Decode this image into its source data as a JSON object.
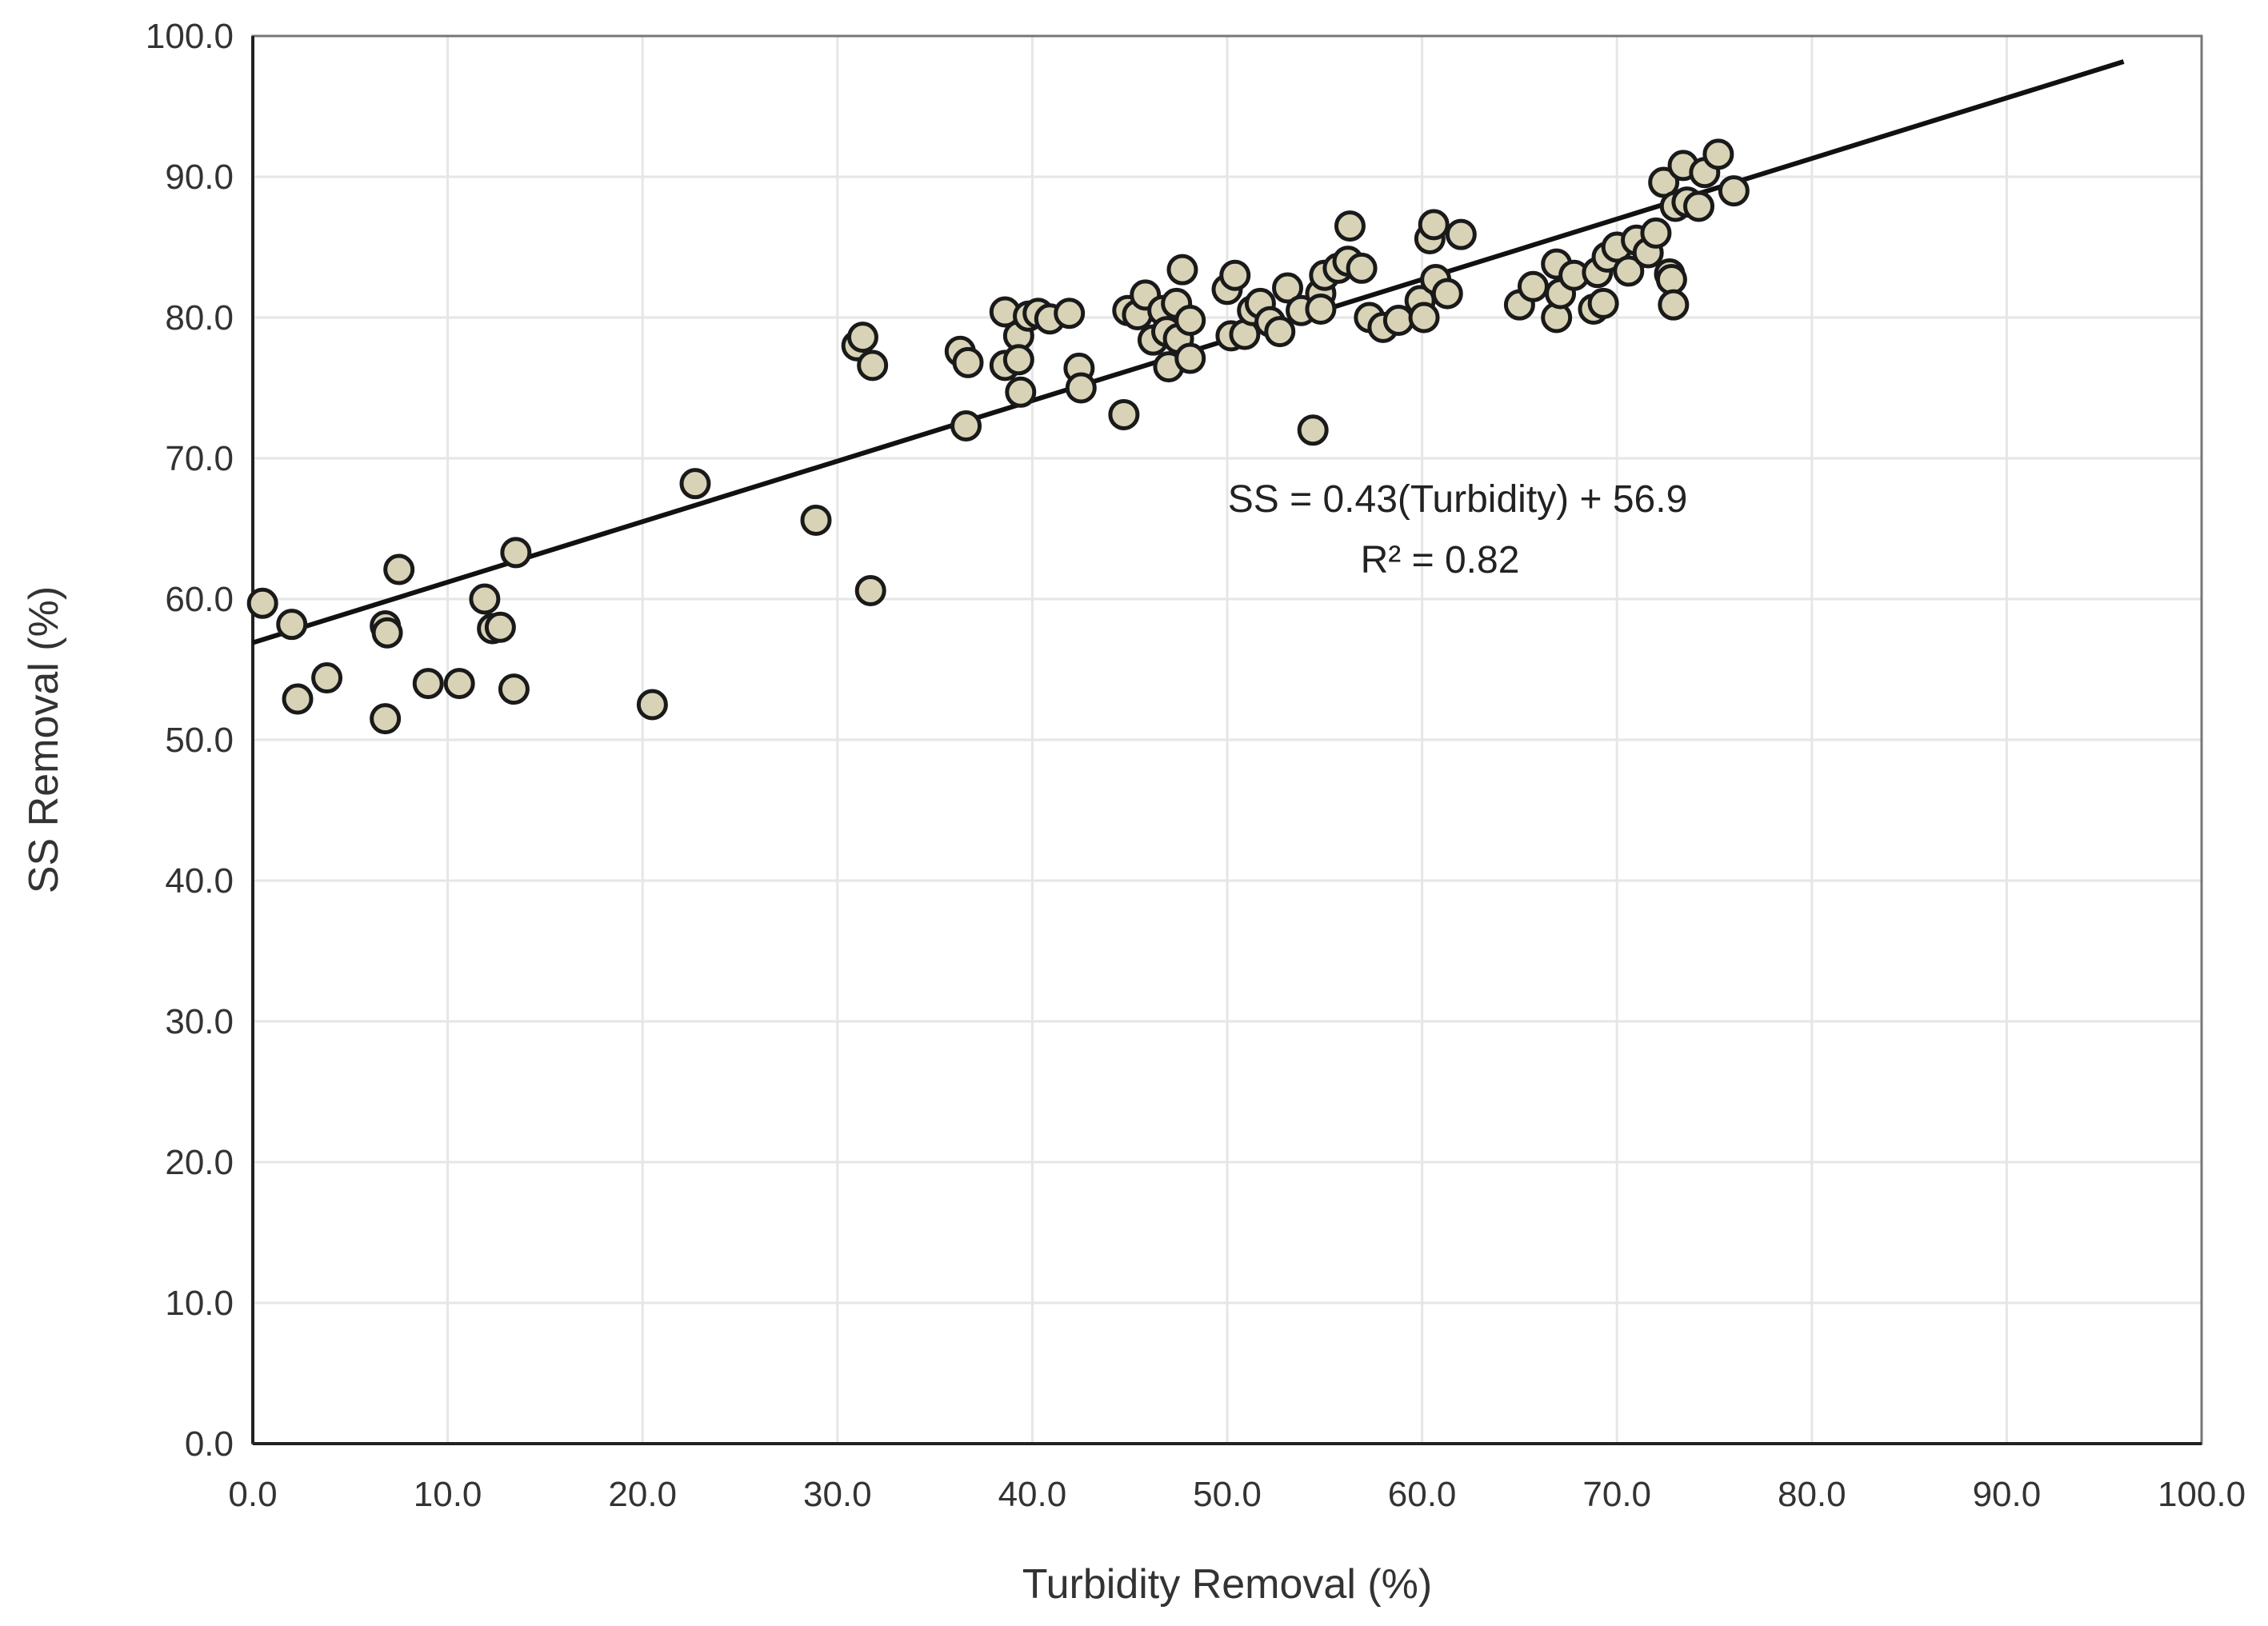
{
  "chart_data": {
    "type": "scatter",
    "title": "",
    "xlabel": "Turbidity Removal (%)",
    "ylabel": "SS Removal (%)",
    "xlim": [
      0,
      100
    ],
    "ylim": [
      0,
      100
    ],
    "xticks": [
      "0.0",
      "10.0",
      "20.0",
      "30.0",
      "40.0",
      "50.0",
      "60.0",
      "70.0",
      "80.0",
      "90.0",
      "100.0"
    ],
    "yticks": [
      "0.0",
      "10.0",
      "20.0",
      "30.0",
      "40.0",
      "50.0",
      "60.0",
      "70.0",
      "80.0",
      "90.0",
      "100.0"
    ],
    "grid": true,
    "marker_fill": "#d8d3b6",
    "marker_edge": "#1a1a1a",
    "points": [
      [
        0.5,
        59.7
      ],
      [
        2,
        58.2
      ],
      [
        2.3,
        52.9
      ],
      [
        3.8,
        54.4
      ],
      [
        6.8,
        58.1
      ],
      [
        6.9,
        57.6
      ],
      [
        6.8,
        51.5
      ],
      [
        7.5,
        62.1
      ],
      [
        9,
        54
      ],
      [
        10.6,
        54
      ],
      [
        11.9,
        60
      ],
      [
        12.3,
        57.9
      ],
      [
        12.7,
        58
      ],
      [
        13.4,
        53.6
      ],
      [
        13.5,
        63.3
      ],
      [
        20.5,
        52.5
      ],
      [
        22.7,
        68.2
      ],
      [
        28.9,
        65.6
      ],
      [
        31.7,
        60.6
      ],
      [
        31,
        78
      ],
      [
        31.3,
        78.6
      ],
      [
        31.8,
        76.6
      ],
      [
        36.3,
        77.6
      ],
      [
        36.6,
        72.3
      ],
      [
        36.7,
        76.8
      ],
      [
        38.6,
        80.4
      ],
      [
        38.6,
        76.6
      ],
      [
        39.3,
        78.7
      ],
      [
        39.3,
        77
      ],
      [
        39.4,
        74.7
      ],
      [
        39.8,
        80.1
      ],
      [
        40.3,
        80.3
      ],
      [
        40.9,
        79.9
      ],
      [
        41.9,
        80.3
      ],
      [
        42.4,
        76.4
      ],
      [
        42.5,
        75
      ],
      [
        44.7,
        73.1
      ],
      [
        44.9,
        80.5
      ],
      [
        45.4,
        80.2
      ],
      [
        45.8,
        81.6
      ],
      [
        46.2,
        78.4
      ],
      [
        46.7,
        80.5
      ],
      [
        46.9,
        79
      ],
      [
        47,
        76.5
      ],
      [
        47.4,
        81
      ],
      [
        47.5,
        78.5
      ],
      [
        47.7,
        83.4
      ],
      [
        48.1,
        77.1
      ],
      [
        48.1,
        79.8
      ],
      [
        50,
        82
      ],
      [
        50.2,
        78.7
      ],
      [
        50.4,
        83
      ],
      [
        50.9,
        78.8
      ],
      [
        51.3,
        80.5
      ],
      [
        51.7,
        81
      ],
      [
        52.2,
        79.7
      ],
      [
        52.7,
        79
      ],
      [
        53.1,
        82.1
      ],
      [
        53.8,
        80.5
      ],
      [
        54.4,
        72
      ],
      [
        54.8,
        81.7
      ],
      [
        54.8,
        80.6
      ],
      [
        55,
        83
      ],
      [
        55.7,
        83.5
      ],
      [
        56.2,
        84
      ],
      [
        56.3,
        86.5
      ],
      [
        56.9,
        83.5
      ],
      [
        57.3,
        80
      ],
      [
        58,
        79.3
      ],
      [
        58.8,
        79.8
      ],
      [
        59.9,
        81.2
      ],
      [
        60.1,
        80
      ],
      [
        60.4,
        85.6
      ],
      [
        60.6,
        86.6
      ],
      [
        60.7,
        82.7
      ],
      [
        61.3,
        81.7
      ],
      [
        62,
        85.9
      ],
      [
        65,
        80.9
      ],
      [
        65.7,
        82.2
      ],
      [
        66.9,
        83.8
      ],
      [
        66.9,
        80
      ],
      [
        67.1,
        81.7
      ],
      [
        67.8,
        83
      ],
      [
        68.8,
        80.6
      ],
      [
        69,
        83.2
      ],
      [
        69.3,
        81
      ],
      [
        69.5,
        84.3
      ],
      [
        70,
        85
      ],
      [
        70.6,
        83.3
      ],
      [
        71,
        85.5
      ],
      [
        71.6,
        84.6
      ],
      [
        72,
        86
      ],
      [
        72.4,
        89.6
      ],
      [
        72.7,
        83.1
      ],
      [
        72.8,
        82.7
      ],
      [
        72.9,
        80.9
      ],
      [
        73,
        87.9
      ],
      [
        73.4,
        90.8
      ],
      [
        73.6,
        88.2
      ],
      [
        74.2,
        87.9
      ],
      [
        74.5,
        90.3
      ],
      [
        75.2,
        91.6
      ],
      [
        76,
        89
      ]
    ],
    "trendline": {
      "slope": 0.43,
      "intercept": 56.9,
      "x_range": [
        0,
        96
      ],
      "color": "#111111"
    },
    "annotations": {
      "equation": "SS = 0.43(Turbidity) + 56.9",
      "r2": "R² = 0.82"
    }
  }
}
